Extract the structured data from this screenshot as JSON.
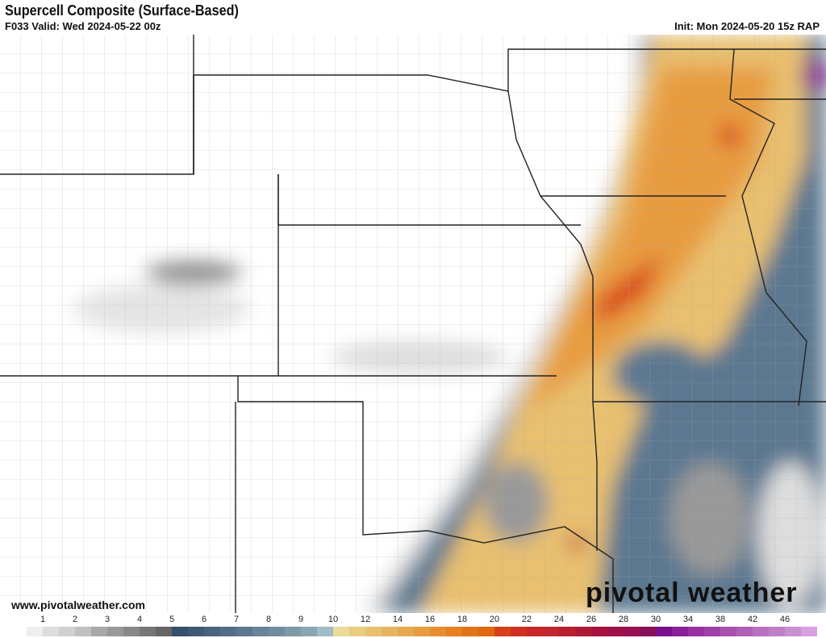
{
  "header": {
    "title": "Supercell Composite (Surface-Based)",
    "valid": "F033 Valid: Wed 2024-05-22 00z",
    "init": "Init: Mon 2024-05-20 15z RAP"
  },
  "footer": {
    "website": "www.pivotalweather.com",
    "logo": "pivotal weather"
  },
  "colorbar": {
    "labels": [
      {
        "v": "1",
        "i": 2
      },
      {
        "v": "2",
        "i": 4
      },
      {
        "v": "3",
        "i": 6
      },
      {
        "v": "4",
        "i": 8
      },
      {
        "v": "5",
        "i": 10
      },
      {
        "v": "6",
        "i": 12
      },
      {
        "v": "7",
        "i": 14
      },
      {
        "v": "8",
        "i": 16
      },
      {
        "v": "9",
        "i": 18
      },
      {
        "v": "10",
        "i": 20
      },
      {
        "v": "12",
        "i": 22
      },
      {
        "v": "14",
        "i": 24
      },
      {
        "v": "16",
        "i": 26
      },
      {
        "v": "18",
        "i": 28
      },
      {
        "v": "20",
        "i": 30
      },
      {
        "v": "22",
        "i": 32
      },
      {
        "v": "24",
        "i": 34
      },
      {
        "v": "26",
        "i": 36
      },
      {
        "v": "28",
        "i": 38
      },
      {
        "v": "30",
        "i": 40
      },
      {
        "v": "34",
        "i": 42
      },
      {
        "v": "38",
        "i": 44
      },
      {
        "v": "42",
        "i": 46
      },
      {
        "v": "46",
        "i": 48
      }
    ],
    "colors": [
      "#ffffff",
      "#eeeeee",
      "#dddddd",
      "#d0d0d0",
      "#c0c0c0",
      "#a8a8a8",
      "#999999",
      "#888888",
      "#777777",
      "#666666",
      "#34506a",
      "#3e5a74",
      "#48647e",
      "#526e88",
      "#5c7890",
      "#678498",
      "#718ea0",
      "#7d9aa8",
      "#89a6b2",
      "#a0bcc6",
      "#eadc98",
      "#e8cc80",
      "#e8c070",
      "#e8b460",
      "#e8a850",
      "#e89c40",
      "#e88e30",
      "#e88020",
      "#e07418",
      "#e06810",
      "#d84018",
      "#d03020",
      "#c82828",
      "#c02830",
      "#b82030",
      "#b01838",
      "#a81040",
      "#a01048",
      "#981050",
      "#881058",
      "#7a1090",
      "#8a2098",
      "#9830a0",
      "#a040a8",
      "#a850b0",
      "#b060b8",
      "#b870c0",
      "#c080c8",
      "#c890d0",
      "#d8a0e0"
    ]
  },
  "map": {
    "state_border_color": "#222222",
    "county_border_color": "#999999"
  }
}
